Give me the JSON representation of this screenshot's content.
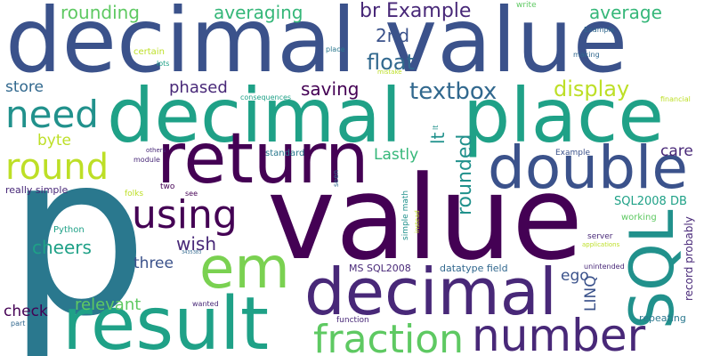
{
  "words": [
    "decimal",
    "value",
    "decimal",
    "place",
    "p",
    "value",
    "return",
    "result",
    "em",
    "decimal",
    "double",
    "SQL",
    "number",
    "fraction",
    "need",
    "round",
    "using",
    "rounding",
    "averaging",
    "br Example",
    "average",
    "2nd",
    "float",
    "store",
    "phased",
    "saving",
    "textbox",
    "display",
    "byte",
    "rounded",
    "lt",
    "Lastly",
    "care",
    "cheers",
    "wish",
    "three",
    "relevant",
    "check",
    "ego",
    "LINQ",
    "SQL2008 DB",
    "MS SQL2008",
    "datatype field",
    "record probably",
    "repeating",
    "write",
    "Example",
    "certain",
    "lots",
    "place",
    "mistake",
    "making",
    "financial",
    "consequences",
    "standard",
    "really simple",
    "module",
    "others",
    "folks",
    "two",
    "see",
    "seen",
    "Python",
    "simple math",
    "instead",
    "working",
    "server",
    "applications",
    "unintended",
    "wanted",
    "part",
    "function",
    "Example",
    "3435383",
    "lt"
  ]
}
